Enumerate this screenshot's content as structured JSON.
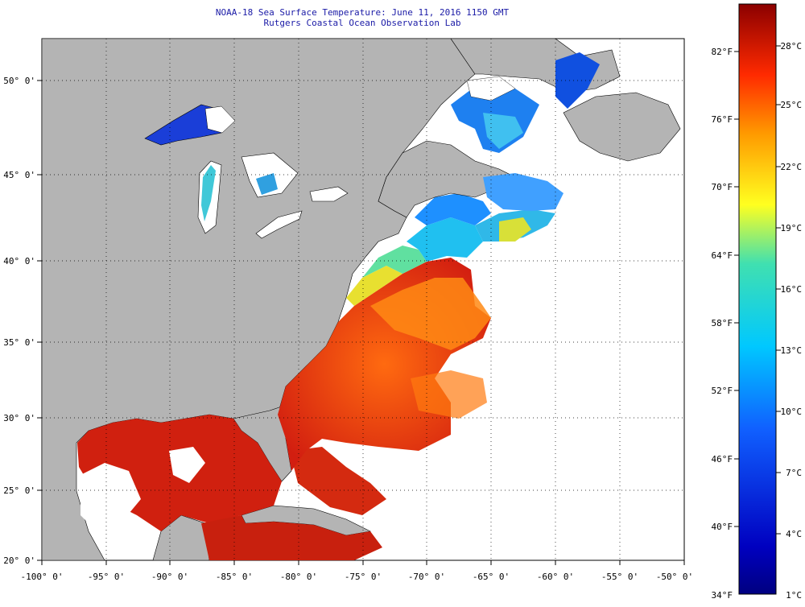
{
  "title": {
    "line1": "NOAA-18 Sea Surface Temperature:  June 11, 2016 1150 GMT",
    "line2": "Rutgers Coastal Ocean Observation Lab"
  },
  "map": {
    "lon_ticks": [
      "-100° 0'",
      "-95° 0'",
      "-90° 0'",
      "-85° 0'",
      "-80° 0'",
      "-75° 0'",
      "-70° 0'",
      "-65° 0'",
      "-60° 0'",
      "-55° 0'",
      "-50° 0'"
    ],
    "lat_ticks": [
      "50° 0'",
      "45° 0'",
      "40° 0'",
      "35° 0'",
      "30° 0'",
      "25° 0'",
      "20° 0'"
    ],
    "lon_range": [
      -100,
      -50
    ],
    "lat_range": [
      20,
      52.5
    ],
    "colors": {
      "land": "#b4b4b4",
      "nodata": "#ffffff",
      "gulf_stream": "#d22a14",
      "warm": "#e23a10"
    }
  },
  "colorbar": {
    "fahrenheit_labels": [
      "82°F",
      "76°F",
      "70°F",
      "64°F",
      "58°F",
      "52°F",
      "46°F",
      "40°F",
      "34°F"
    ],
    "celsius_labels": [
      "28°C",
      "25°C",
      "22°C",
      "19°C",
      "16°C",
      "13°C",
      "10°C",
      "7°C",
      "4°C",
      "1°C"
    ],
    "colors": [
      "#8b0000",
      "#ff2a00",
      "#ff9a00",
      "#ffff20",
      "#40e0b0",
      "#00c8ff",
      "#1060ff",
      "#0000c0",
      "#000080"
    ]
  }
}
